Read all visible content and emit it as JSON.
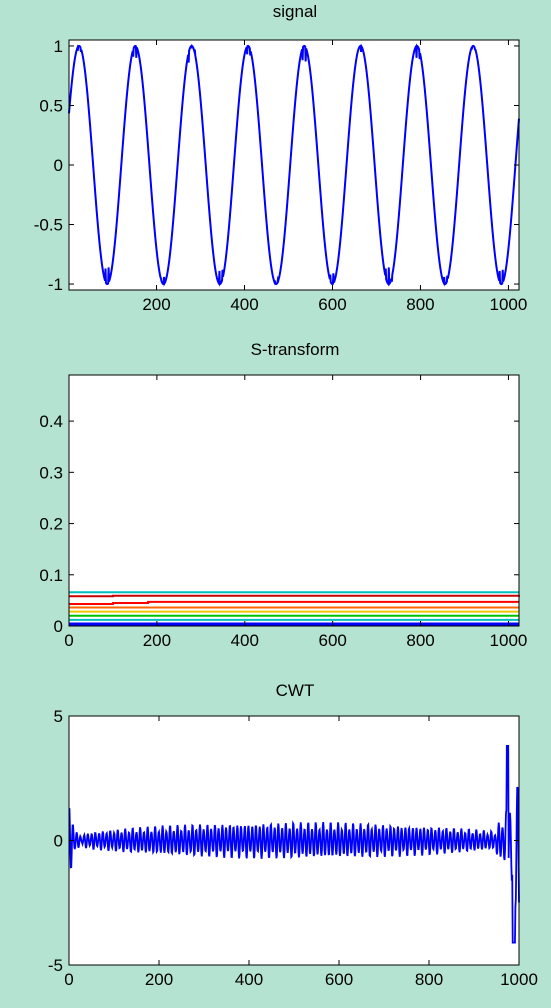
{
  "chart_data": [
    {
      "type": "line",
      "title": "signal",
      "xlabel": "",
      "ylabel": "",
      "xlim": [
        1,
        1024
      ],
      "ylim": [
        -1.05,
        1.05
      ],
      "xticks": [
        200,
        400,
        600,
        800,
        1000
      ],
      "yticks": [
        1,
        0.5,
        0,
        -0.5,
        -1
      ],
      "grid": false,
      "series": [
        {
          "color": "#0000ff",
          "function": "sin",
          "amplitude": 1,
          "period": 128,
          "phase_start": 0.4,
          "noise": "small spikes near peaks"
        }
      ]
    },
    {
      "type": "line",
      "title": "S-transform",
      "xlabel": "",
      "ylabel": "",
      "xlim": [
        0,
        1024
      ],
      "ylim": [
        0,
        0.49
      ],
      "xticks": [
        0,
        200,
        400,
        600,
        800,
        1000
      ],
      "yticks": [
        0.4,
        0.3,
        0.2,
        0.1,
        0
      ],
      "grid": false,
      "series": [
        {
          "color": "#0000ff",
          "values": [
            0.004,
            0.004
          ]
        },
        {
          "color": "#00bfbf",
          "values": [
            0.012,
            0.012
          ]
        },
        {
          "color": "#00c000",
          "values": [
            0.02,
            0.02
          ]
        },
        {
          "color": "#f2c400",
          "values": [
            0.028,
            0.028
          ]
        },
        {
          "color": "#ff6600",
          "values": [
            0.036,
            0.036
          ]
        },
        {
          "color": "#ff0000",
          "x": [
            0,
            60,
            100,
            180,
            1024
          ],
          "values": [
            0.043,
            0.043,
            0.045,
            0.047,
            0.047
          ]
        },
        {
          "color": "#cc0000",
          "x": [
            0,
            100,
            1024
          ],
          "values": [
            0.058,
            0.059,
            0.06
          ]
        },
        {
          "color": "#00bfbf",
          "values": [
            0.066,
            0.066
          ]
        }
      ]
    },
    {
      "type": "line",
      "title": "CWT",
      "xlabel": "",
      "ylabel": "",
      "xlim": [
        0,
        1000
      ],
      "ylim": [
        -5,
        5
      ],
      "xticks": [
        0,
        200,
        400,
        600,
        800,
        1000
      ],
      "yticks": [
        5,
        0,
        -5
      ],
      "grid": false,
      "series": [
        {
          "color": "#0000ff",
          "description": "oscillation around 0 with envelope ~0.2-0.8, edge bursts at x≈0 (±1.7) and x≈970-1000 (up to 3.8 / -4.2)"
        }
      ]
    }
  ]
}
